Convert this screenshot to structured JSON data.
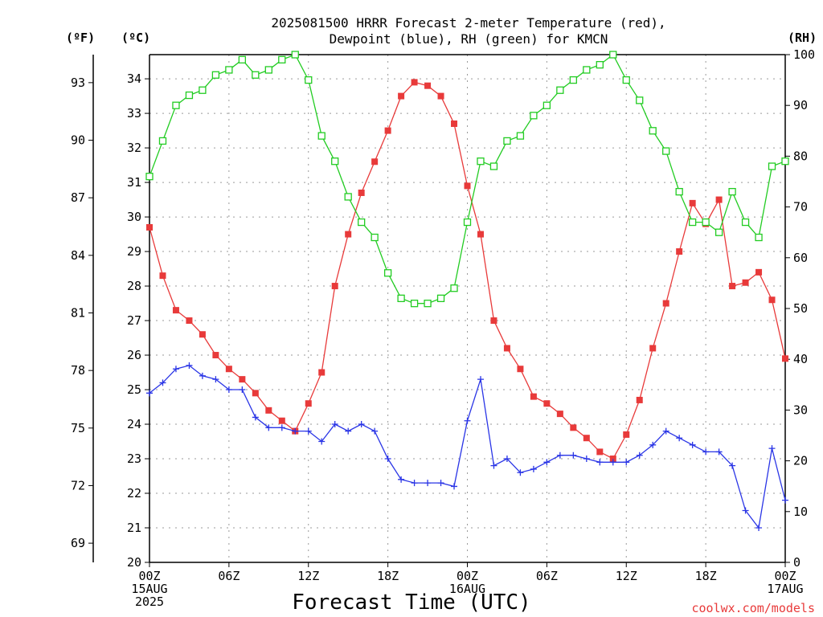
{
  "chart_data": {
    "type": "line",
    "title_lines": [
      "2025081500 HRRR Forecast 2-meter Temperature (red),",
      "Dewpoint (blue), RH (green) for KMCN"
    ],
    "xlabel": "Forecast Time (UTC)",
    "credit": "coolwx.com/models",
    "units": {
      "fahrenheit": "(ºF)",
      "celsius": "(ºC)",
      "rh": "(RH)"
    },
    "x_range_hours": [
      0,
      48
    ],
    "x_ticks": [
      {
        "hour": 0,
        "lines": [
          "00Z",
          "15AUG",
          "2025"
        ]
      },
      {
        "hour": 6,
        "lines": [
          "06Z"
        ]
      },
      {
        "hour": 12,
        "lines": [
          "12Z"
        ]
      },
      {
        "hour": 18,
        "lines": [
          "18Z"
        ]
      },
      {
        "hour": 24,
        "lines": [
          "00Z",
          "16AUG"
        ]
      },
      {
        "hour": 30,
        "lines": [
          "06Z"
        ]
      },
      {
        "hour": 36,
        "lines": [
          "12Z"
        ]
      },
      {
        "hour": 42,
        "lines": [
          "18Z"
        ]
      },
      {
        "hour": 48,
        "lines": [
          "00Z",
          "17AUG"
        ]
      }
    ],
    "celsius_axis": {
      "range": [
        20,
        34.7
      ],
      "ticks": [
        20,
        21,
        22,
        23,
        24,
        25,
        26,
        27,
        28,
        29,
        30,
        31,
        32,
        33,
        34
      ]
    },
    "fahrenheit_axis": {
      "ticks": [
        69,
        72,
        75,
        78,
        81,
        84,
        87,
        90,
        93
      ]
    },
    "rh_axis": {
      "range": [
        0,
        100
      ],
      "ticks": [
        0,
        10,
        20,
        30,
        40,
        50,
        60,
        70,
        80,
        90,
        100
      ]
    },
    "grid": true,
    "series": [
      {
        "name": "Temperature",
        "axis": "celsius",
        "color": "#e83a3a",
        "marker": "filled-square",
        "values": [
          29.7,
          28.3,
          27.3,
          27.0,
          26.6,
          26.0,
          25.6,
          25.3,
          24.9,
          24.4,
          24.1,
          23.8,
          24.6,
          25.5,
          28.0,
          29.5,
          30.7,
          31.6,
          32.5,
          33.5,
          33.9,
          33.8,
          33.5,
          32.7,
          30.9,
          29.5,
          27.0,
          26.2,
          25.6,
          24.8,
          24.6,
          24.3,
          23.9,
          23.6,
          23.2,
          23.0,
          23.7,
          24.7,
          26.2,
          27.5,
          29.0,
          30.4,
          29.8,
          30.5,
          28.0,
          28.1,
          28.4,
          27.6,
          25.9
        ]
      },
      {
        "name": "Dewpoint",
        "axis": "celsius",
        "color": "#2a35e6",
        "marker": "plus",
        "values": [
          24.9,
          25.2,
          25.6,
          25.7,
          25.4,
          25.3,
          25.0,
          25.0,
          24.2,
          23.9,
          23.9,
          23.8,
          23.8,
          23.5,
          24.0,
          23.8,
          24.0,
          23.8,
          23.0,
          22.4,
          22.3,
          22.3,
          22.3,
          22.2,
          24.1,
          25.3,
          22.8,
          23.0,
          22.6,
          22.7,
          22.9,
          23.1,
          23.1,
          23.0,
          22.9,
          22.9,
          22.9,
          23.1,
          23.4,
          23.8,
          23.6,
          23.4,
          23.2,
          23.2,
          22.8,
          21.5,
          21.0,
          23.3,
          21.8
        ]
      },
      {
        "name": "RH",
        "axis": "rh",
        "color": "#22cc22",
        "marker": "open-square",
        "values": [
          76,
          83,
          90,
          92,
          93,
          96,
          97,
          99,
          96,
          97,
          99,
          100,
          95,
          84,
          79,
          72,
          67,
          64,
          57,
          52,
          51,
          51,
          52,
          54,
          67,
          79,
          78,
          83,
          84,
          88,
          90,
          93,
          95,
          97,
          98,
          100,
          95,
          91,
          85,
          81,
          73,
          67,
          67,
          65,
          73,
          67,
          64,
          78,
          79
        ]
      }
    ]
  }
}
